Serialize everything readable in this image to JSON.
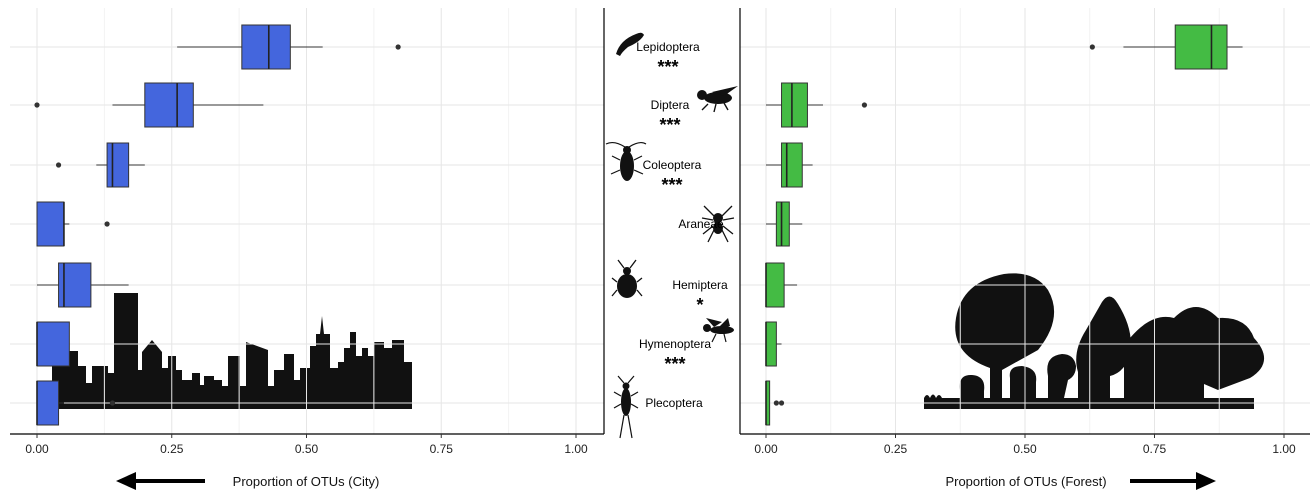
{
  "chart_data": [
    {
      "type": "boxplot",
      "panel": "city",
      "xlabel": "Proportion of OTUs (City)",
      "xlim": [
        1.0,
        0.0
      ],
      "x_ticks": [
        "1.00",
        "0.75",
        "0.50",
        "0.25",
        "0.00"
      ],
      "color": "#4466dd",
      "categories": [
        "Lepidoptera",
        "Diptera",
        "Coleoptera",
        "Araneae",
        "Hemiptera",
        "Hymenoptera",
        "Plecoptera"
      ],
      "boxes": [
        {
          "category": "Lepidoptera",
          "whisker_low": 0.26,
          "q1": 0.38,
          "median": 0.43,
          "q3": 0.47,
          "whisker_high": 0.53,
          "outliers": [
            0.67
          ]
        },
        {
          "category": "Diptera",
          "whisker_low": 0.14,
          "q1": 0.2,
          "median": 0.26,
          "q3": 0.29,
          "whisker_high": 0.42,
          "outliers": [
            0.0
          ]
        },
        {
          "category": "Coleoptera",
          "whisker_low": 0.11,
          "q1": 0.13,
          "median": 0.14,
          "q3": 0.17,
          "whisker_high": 0.2,
          "outliers": [
            0.04
          ]
        },
        {
          "category": "Araneae",
          "whisker_low": 0.0,
          "q1": 0.0,
          "median": 0.05,
          "q3": 0.05,
          "whisker_high": 0.06,
          "outliers": [
            0.13
          ]
        },
        {
          "category": "Hemiptera",
          "whisker_low": 0.0,
          "q1": 0.04,
          "median": 0.05,
          "q3": 0.1,
          "whisker_high": 0.17,
          "outliers": []
        },
        {
          "category": "Hymenoptera",
          "whisker_low": 0.0,
          "q1": 0.0,
          "median": 0.0,
          "q3": 0.06,
          "whisker_high": 0.06,
          "outliers": []
        },
        {
          "category": "Plecoptera",
          "whisker_low": 0.0,
          "q1": 0.0,
          "median": 0.0,
          "q3": 0.04,
          "whisker_high": 0.05,
          "outliers": [
            0.14
          ]
        }
      ]
    },
    {
      "type": "boxplot",
      "panel": "forest",
      "xlabel": "Proportion of OTUs (Forest)",
      "xlim": [
        0.0,
        1.0
      ],
      "x_ticks": [
        "0.00",
        "0.25",
        "0.50",
        "0.75",
        "1.00"
      ],
      "color": "#44bb44",
      "categories": [
        "Lepidoptera",
        "Diptera",
        "Coleoptera",
        "Araneae",
        "Hemiptera",
        "Hymenoptera",
        "Plecoptera"
      ],
      "boxes": [
        {
          "category": "Lepidoptera",
          "whisker_low": 0.69,
          "q1": 0.79,
          "median": 0.86,
          "q3": 0.89,
          "whisker_high": 0.92,
          "outliers": [
            0.63
          ]
        },
        {
          "category": "Diptera",
          "whisker_low": 0.0,
          "q1": 0.03,
          "median": 0.05,
          "q3": 0.08,
          "whisker_high": 0.11,
          "outliers": [
            0.19
          ]
        },
        {
          "category": "Coleoptera",
          "whisker_low": 0.0,
          "q1": 0.03,
          "median": 0.04,
          "q3": 0.07,
          "whisker_high": 0.09,
          "outliers": []
        },
        {
          "category": "Araneae",
          "whisker_low": 0.0,
          "q1": 0.02,
          "median": 0.03,
          "q3": 0.045,
          "whisker_high": 0.07,
          "outliers": []
        },
        {
          "category": "Hemiptera",
          "whisker_low": 0.0,
          "q1": 0.0,
          "median": 0.0,
          "q3": 0.035,
          "whisker_high": 0.06,
          "outliers": []
        },
        {
          "category": "Hymenoptera",
          "whisker_low": 0.0,
          "q1": 0.0,
          "median": 0.0,
          "q3": 0.02,
          "whisker_high": 0.03,
          "outliers": []
        },
        {
          "category": "Plecoptera",
          "whisker_low": 0.0,
          "q1": 0.0,
          "median": 0.0,
          "q3": 0.007,
          "whisker_high": 0.007,
          "outliers": [
            0.02,
            0.03
          ]
        }
      ]
    }
  ],
  "labels": {
    "categories": [
      "Lepidoptera",
      "Diptera",
      "Coleoptera",
      "Araneae",
      "Hemiptera",
      "Hymenoptera",
      "Plecoptera"
    ],
    "significance": [
      "***",
      "***",
      "***",
      "",
      "*",
      "***",
      ""
    ]
  },
  "arrows": {
    "city": "left",
    "forest": "right"
  },
  "silhouettes": {
    "city": "city-skyline",
    "forest": "forest-trees",
    "insects": [
      "caterpillar-icon",
      "fly-icon",
      "cockroach-icon",
      "spider-icon",
      "aphid-icon",
      "wasp-icon",
      "stonefly-icon"
    ]
  }
}
